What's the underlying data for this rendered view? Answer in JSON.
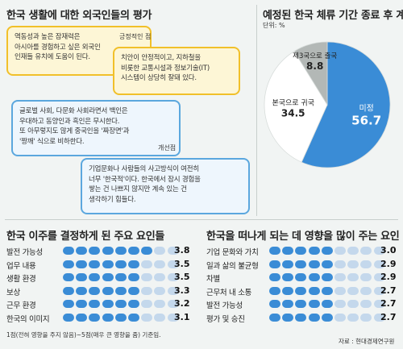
{
  "colors": {
    "accent_blue": "#3a8cd6",
    "light_pill": "#c4d8ec",
    "pie_grey": "#b3b8b6",
    "pie_white": "#ffffff"
  },
  "top_left": {
    "title": "한국 생활에 대한 외국인들의 평가",
    "tag_positive": "긍정적인 점",
    "tag_improve": "개선점",
    "bubbles": [
      "역동성과 높은 잠재력은\n아시아를 경험하고 싶은 외국인\n인재들 유치에 도움이 된다.",
      "치안이 안정적이고, 지하철을\n비롯한 교통시설과 정보기술(IT)\n시스템이 상당히 잘돼 있다.",
      "글로벌 사회, 다문화 사회라면서 백인은\n우대하고 동양인과 흑인은 무시한다.\n또 아무렇지도 않게 중국인을 '짜장면'과\n'짱깨' 식으로 비하한다.",
      "기업문화나 사람들의 사고방식이 여전히\n너무 '한국적'이다. 한국에서 잠시 경험을\n쌓는 건 나쁘지 않지만 계속 있는 건\n생각하기 힘들다."
    ]
  },
  "chart_data": [
    {
      "type": "pie",
      "title": "예정된 한국 체류 기간 종료 후 계획",
      "subtitle": "단위: %",
      "slices": [
        {
          "label": "미정",
          "value": 56.7,
          "value_text": "56.7",
          "color": "#3a8cd6"
        },
        {
          "label": "본국으로 귀국",
          "value": 34.5,
          "value_text": "34.5",
          "color": "#ffffff"
        },
        {
          "label": "제3국으로 출국",
          "value": 8.8,
          "value_text": "8.8",
          "color": "#b3b8b6"
        }
      ]
    },
    {
      "type": "bar",
      "title": "한국 이주를 결정하게 된 주요 요인들",
      "categories": [
        "발전 가능성",
        "업무 내용",
        "생활 환경",
        "보상",
        "근무 환경",
        "한국의 이미지"
      ],
      "values": [
        3.8,
        3.5,
        3.5,
        3.3,
        3.2,
        3.1
      ],
      "value_labels": [
        "3.8",
        "3.5",
        "3.5",
        "3.3",
        "3.2",
        "3.1"
      ],
      "scale_max": 5
    },
    {
      "type": "bar",
      "title": "한국을 떠나게 되는 데 영향을 많이 주는 요인",
      "categories": [
        "기업 문화와 가치",
        "일과 삶의 불균형",
        "차별",
        "근무처 내 소통",
        "발전 가능성",
        "평가 및 승진"
      ],
      "values": [
        3.0,
        2.9,
        2.9,
        2.7,
        2.7,
        2.7
      ],
      "value_labels": [
        "3.0",
        "2.9",
        "2.9",
        "2.7",
        "2.7",
        "2.7"
      ],
      "scale_max": 5
    }
  ],
  "footnote": "1점(전혀 영향을 주지 않음)~5점(매우 큰 영향을 줌) 기준임.",
  "source": "자료 : 현대경제연구원"
}
